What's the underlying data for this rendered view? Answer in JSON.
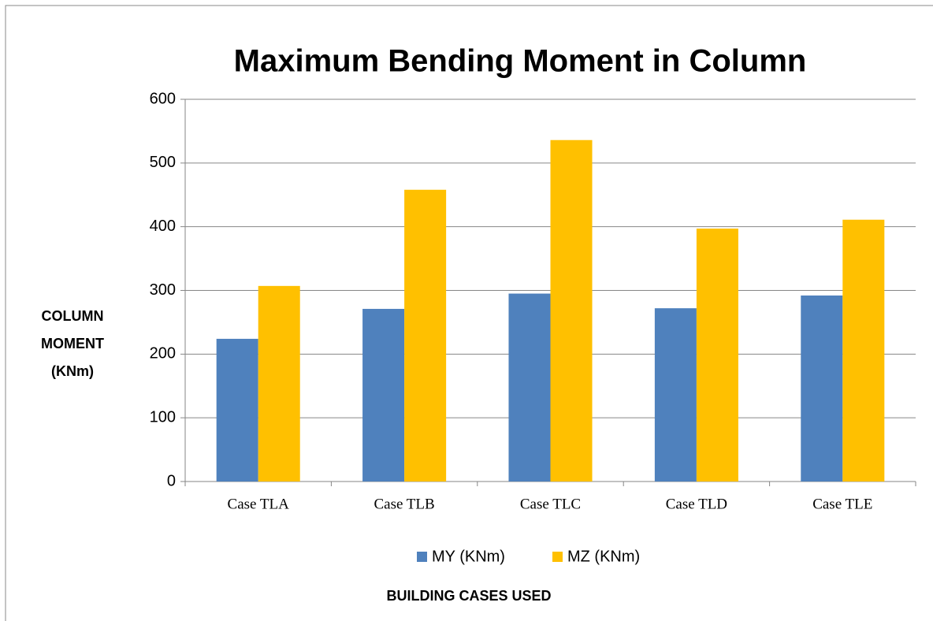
{
  "chart_data": {
    "type": "bar",
    "title": "Maximum Bending Moment in Column",
    "ylabel": [
      "COLUMN",
      "MOMENT",
      "(KNm)"
    ],
    "xlabel": "BUILDING CASES USED",
    "categories": [
      "Case TLA",
      "Case TLB",
      "Case TLC",
      "Case TLD",
      "Case TLE"
    ],
    "series": [
      {
        "name": "MY (KNm)",
        "color": "#4f81bd",
        "values": [
          224,
          271,
          295,
          272,
          292
        ]
      },
      {
        "name": "MZ (KNm)",
        "color": "#ffc000",
        "values": [
          307,
          458,
          536,
          397,
          411
        ]
      }
    ],
    "ylim": [
      0,
      600
    ],
    "yticks": [
      0,
      100,
      200,
      300,
      400,
      500,
      600
    ],
    "grid": true,
    "legend": "bottom"
  }
}
